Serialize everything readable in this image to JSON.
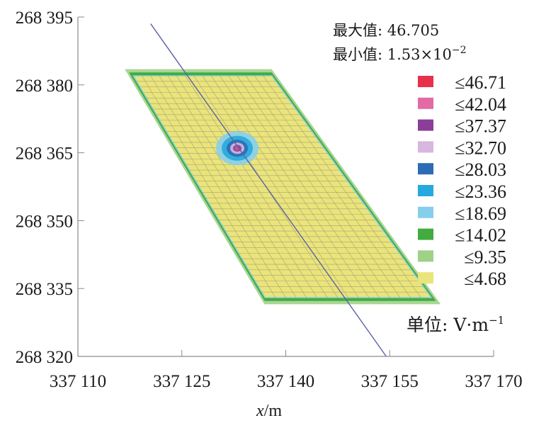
{
  "chart_data": {
    "type": "heatmap",
    "title": "",
    "xlabel_var": "x",
    "xlabel_unit": "/m",
    "ylabel": "",
    "xlim": [
      337110,
      337170
    ],
    "ylim": [
      268320,
      268395
    ],
    "x_ticks": [
      337110,
      337125,
      337140,
      337155,
      337170
    ],
    "x_tick_labels": [
      "337 110",
      "337 125",
      "337 140",
      "337 155",
      "337 170"
    ],
    "y_ticks": [
      268320,
      268335,
      268350,
      268365,
      268380,
      268395
    ],
    "y_tick_labels": [
      "268 320",
      "268 335",
      "268 350",
      "268 365",
      "268 380",
      "268 395"
    ],
    "stats": {
      "max_label": "最大值:",
      "max_value": "46.705",
      "min_label": "最小值:",
      "min_mantissa": "1.53",
      "min_times": "×",
      "min_base": "10",
      "min_exp": "−2"
    },
    "legend_position": "right",
    "legend": [
      {
        "label": "≤46.71",
        "value": 46.71,
        "color": "#e8304c"
      },
      {
        "label": "≤42.04",
        "value": 42.04,
        "color": "#e46aa3"
      },
      {
        "label": "≤37.37",
        "value": 37.37,
        "color": "#8a3e98"
      },
      {
        "label": "≤32.70",
        "value": 32.7,
        "color": "#d7b6df"
      },
      {
        "label": "≤28.03",
        "value": 28.03,
        "color": "#2d6bb4"
      },
      {
        "label": "≤23.36",
        "value": 23.36,
        "color": "#27a8de"
      },
      {
        "label": "≤18.69",
        "value": 18.69,
        "color": "#86cfec"
      },
      {
        "label": "≤14.02",
        "value": 14.02,
        "color": "#43ab3f"
      },
      {
        "label": "≤9.35",
        "value": 9.35,
        "color": "#9fd187"
      },
      {
        "label": "≤4.68",
        "value": 4.68,
        "color": "#eae47a"
      }
    ],
    "unit_label": "单位: V·m",
    "unit_exp": "−1",
    "field_region": {
      "corners": [
        [
          337118,
          268382
        ],
        [
          337138,
          268382
        ],
        [
          337161,
          268333
        ],
        [
          337137,
          268333
        ]
      ],
      "background_level": 4.68,
      "edge_level": 14.02,
      "hotspot": {
        "x": 337133,
        "y": 268366,
        "peak": 46.705
      }
    },
    "line": {
      "x": [
        337120.5,
        337154.5
      ],
      "y": [
        268393.5,
        268320
      ]
    },
    "grid": false
  }
}
